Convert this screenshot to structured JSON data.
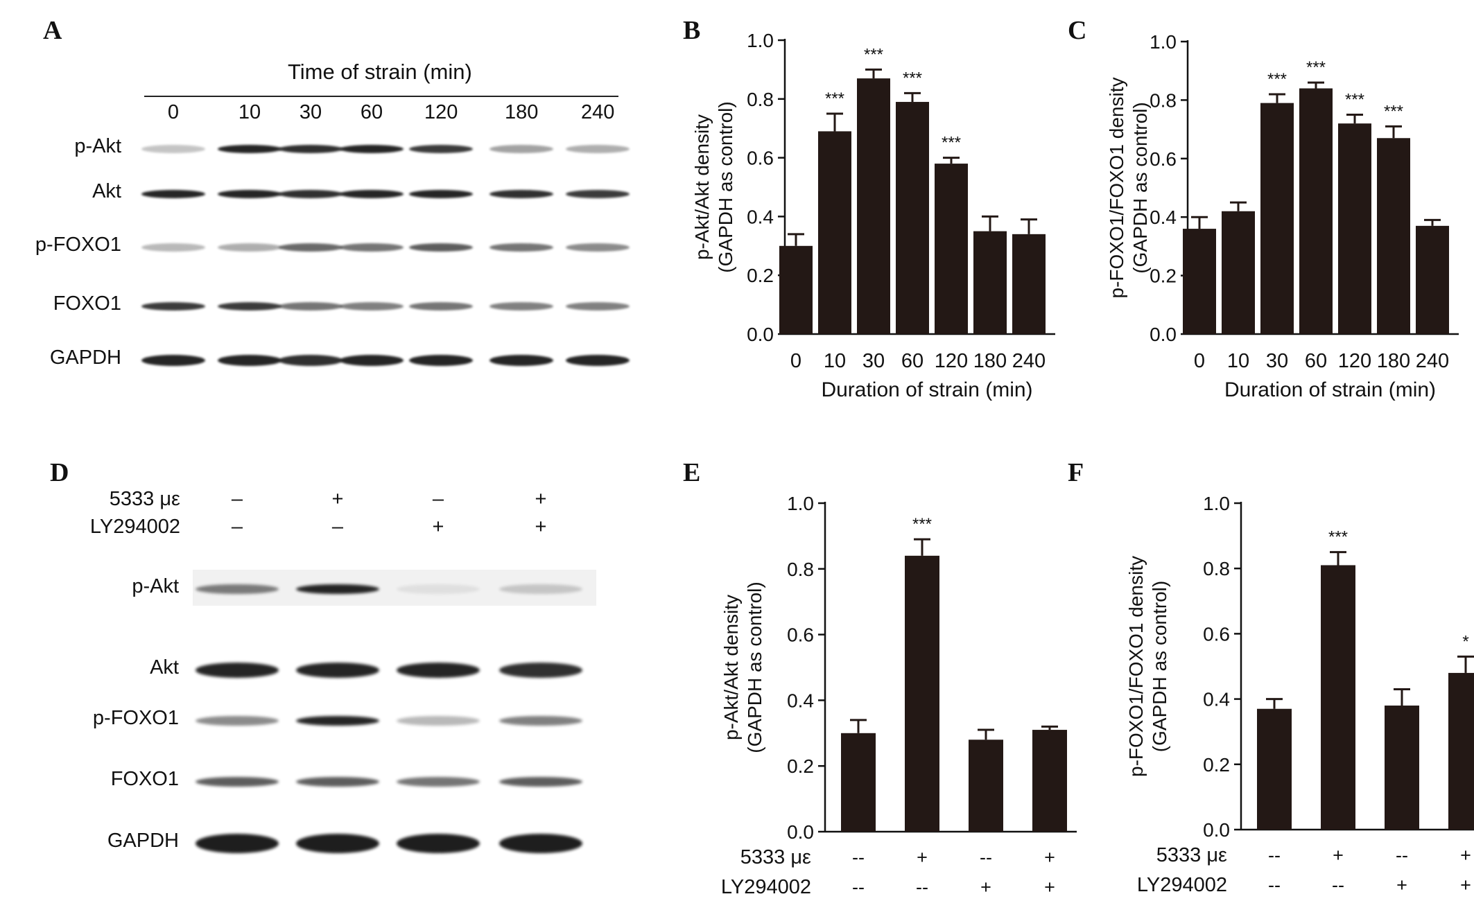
{
  "panels": {
    "A": {
      "label": "A",
      "header": "Time of strain (min)",
      "lanes": [
        "0",
        "10",
        "30",
        "60",
        "120",
        "180",
        "240"
      ],
      "rows": [
        "p-Akt",
        "Akt",
        "p-FOXO1",
        "FOXO1",
        "GAPDH"
      ],
      "intensities": [
        [
          0.25,
          0.95,
          0.9,
          0.95,
          0.85,
          0.4,
          0.35
        ],
        [
          0.95,
          0.95,
          0.9,
          0.95,
          0.95,
          0.9,
          0.85
        ],
        [
          0.3,
          0.35,
          0.65,
          0.6,
          0.7,
          0.6,
          0.5
        ],
        [
          0.85,
          0.85,
          0.6,
          0.55,
          0.6,
          0.55,
          0.55
        ],
        [
          0.95,
          0.95,
          0.9,
          0.95,
          0.95,
          0.95,
          0.95
        ]
      ]
    },
    "D": {
      "label": "D",
      "treatment_rows": [
        {
          "name": "5333 με",
          "values": [
            "–",
            "+",
            "–",
            "+"
          ]
        },
        {
          "name": "LY294002",
          "values": [
            "–",
            "–",
            "+",
            "+"
          ]
        }
      ],
      "rows": [
        "p-Akt",
        "Akt",
        "p-FOXO1",
        "FOXO1",
        "GAPDH"
      ],
      "intensities": [
        [
          0.55,
          0.95,
          0.08,
          0.2
        ],
        [
          0.95,
          0.95,
          0.95,
          0.9
        ],
        [
          0.5,
          0.95,
          0.3,
          0.55
        ],
        [
          0.7,
          0.7,
          0.6,
          0.7
        ],
        [
          0.98,
          0.98,
          0.98,
          0.98
        ]
      ]
    }
  },
  "chart_data": [
    {
      "panel": "B",
      "type": "bar",
      "categories": [
        "0",
        "10",
        "30",
        "60",
        "120",
        "180",
        "240"
      ],
      "values": [
        0.3,
        0.69,
        0.87,
        0.79,
        0.58,
        0.35,
        0.34
      ],
      "errors": [
        0.04,
        0.06,
        0.03,
        0.03,
        0.02,
        0.05,
        0.05
      ],
      "significance": [
        "",
        "***",
        "***",
        "***",
        "***",
        "",
        ""
      ],
      "xlabel": "Duration of strain (min)",
      "ylabel_lines": [
        "p-Akt/Akt density",
        "(GAPDH as control)"
      ],
      "ylim": [
        0,
        1.0
      ],
      "yticks": [
        "0.0",
        "0.2",
        "0.4",
        "0.6",
        "0.8",
        "1.0"
      ],
      "bar_color": "#231815"
    },
    {
      "panel": "C",
      "type": "bar",
      "categories": [
        "0",
        "10",
        "30",
        "60",
        "120",
        "180",
        "240"
      ],
      "values": [
        0.36,
        0.42,
        0.79,
        0.84,
        0.72,
        0.67,
        0.37
      ],
      "errors": [
        0.04,
        0.03,
        0.03,
        0.02,
        0.03,
        0.04,
        0.02
      ],
      "significance": [
        "",
        "",
        "***",
        "***",
        "***",
        "***",
        ""
      ],
      "xlabel": "Duration of strain (min)",
      "ylabel_lines": [
        "p-FOXO1/FOXO1 density",
        "(GAPDH as control)"
      ],
      "ylim": [
        0,
        1.0
      ],
      "yticks": [
        "0.0",
        "0.2",
        "0.4",
        "0.6",
        "0.8",
        "1.0"
      ],
      "bar_color": "#231815"
    },
    {
      "panel": "E",
      "type": "bar",
      "values": [
        0.3,
        0.84,
        0.28,
        0.31
      ],
      "errors": [
        0.04,
        0.05,
        0.03,
        0.01
      ],
      "significance": [
        "",
        "***",
        "",
        ""
      ],
      "treatment_rows": [
        {
          "name": "5333 με",
          "values": [
            "--",
            "+",
            "--",
            "+"
          ]
        },
        {
          "name": "LY294002",
          "values": [
            "--",
            "--",
            "+",
            "+"
          ]
        }
      ],
      "ylabel_lines": [
        "p-Akt/Akt density",
        "(GAPDH as control)"
      ],
      "ylim": [
        0,
        1.0
      ],
      "yticks": [
        "0.0",
        "0.2",
        "0.4",
        "0.6",
        "0.8",
        "1.0"
      ],
      "bar_color": "#231815"
    },
    {
      "panel": "F",
      "type": "bar",
      "values": [
        0.37,
        0.81,
        0.38,
        0.48
      ],
      "errors": [
        0.03,
        0.04,
        0.05,
        0.05
      ],
      "significance": [
        "",
        "***",
        "",
        "*"
      ],
      "treatment_rows": [
        {
          "name": "5333 με",
          "values": [
            "--",
            "+",
            "--",
            "+"
          ]
        },
        {
          "name": "LY294002",
          "values": [
            "--",
            "--",
            "+",
            "+"
          ]
        }
      ],
      "ylabel_lines": [
        "p-FOXO1/FOXO1 density",
        "(GAPDH as control)"
      ],
      "ylim": [
        0,
        1.0
      ],
      "yticks": [
        "0.0",
        "0.2",
        "0.4",
        "0.6",
        "0.8",
        "1.0"
      ],
      "bar_color": "#231815"
    }
  ]
}
